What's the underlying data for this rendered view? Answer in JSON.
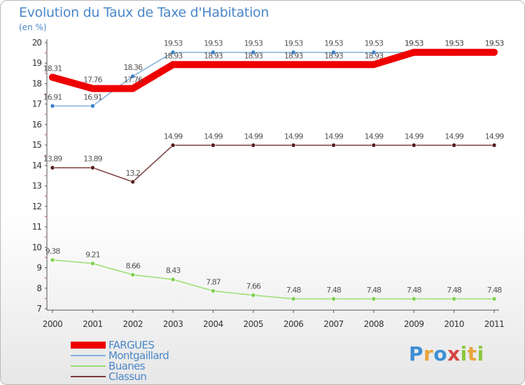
{
  "title": "Evolution du Taux de Taxe d'Habitation",
  "unit_label": "(en %)",
  "logo": {
    "text": "Proxiti",
    "letters": [
      {
        "ch": "P",
        "color": "#3d8fd6"
      },
      {
        "ch": "r",
        "color": "#e8a33a"
      },
      {
        "ch": "o",
        "color": "#3d8fd6"
      },
      {
        "ch": "x",
        "color": "#d64545"
      },
      {
        "ch": "i",
        "color": "#8cc63e"
      },
      {
        "ch": "t",
        "color": "#e8a33a"
      },
      {
        "ch": "i",
        "color": "#8cc63e"
      }
    ]
  },
  "chart_data": {
    "type": "line",
    "title": "Evolution du Taux de Taxe d'Habitation",
    "ylabel": "(en %)",
    "xlabel": "",
    "x": [
      "2000",
      "2001",
      "2002",
      "2003",
      "2004",
      "2005",
      "2006",
      "2007",
      "2008",
      "2009",
      "2010",
      "2011"
    ],
    "ylim": [
      7,
      20
    ],
    "yticks": [
      "7",
      "8",
      "9",
      "10",
      "11",
      "12",
      "13",
      "14",
      "15",
      "16",
      "17",
      "18",
      "19",
      "20"
    ],
    "grid": false,
    "legend_position": "bottom-left",
    "series": [
      {
        "name": "FARGUES",
        "color": "#ee0000",
        "marker_color": "#ee0000",
        "bold": true,
        "values": [
          18.31,
          17.76,
          17.76,
          18.93,
          18.93,
          18.93,
          18.93,
          18.93,
          18.93,
          19.53,
          19.53,
          19.53
        ],
        "labels": [
          "18.31",
          "17.76",
          "17.76",
          "18.93",
          "18.93",
          "18.93",
          "18.93",
          "18.93",
          "18.93",
          "19.53",
          "19.53",
          "19.53"
        ]
      },
      {
        "name": "Montgaillard",
        "color": "#7fb0db",
        "marker_color": "#3a80c8",
        "bold": false,
        "values": [
          16.91,
          16.91,
          18.36,
          19.53,
          19.53,
          19.53,
          19.53,
          19.53,
          19.53,
          19.53,
          19.53,
          19.53
        ],
        "labels": [
          "16.91",
          "16.91",
          "18.36",
          "19.53",
          "19.53",
          "19.53",
          "19.53",
          "19.53",
          "19.53",
          "19.53",
          "19.53",
          "19.53"
        ]
      },
      {
        "name": "Buanes",
        "color": "#99e070",
        "marker_color": "#80d050",
        "bold": false,
        "values": [
          9.38,
          9.21,
          8.66,
          8.43,
          7.87,
          7.66,
          7.48,
          7.48,
          7.48,
          7.48,
          7.48,
          7.48
        ],
        "labels": [
          "9.38",
          "9.21",
          "8.66",
          "8.43",
          "7.87",
          "7.66",
          "7.48",
          "7.48",
          "7.48",
          "7.48",
          "7.48",
          "7.48"
        ]
      },
      {
        "name": "Classun",
        "color": "#7a3a3a",
        "marker_color": "#5a2020",
        "bold": false,
        "values": [
          13.89,
          13.89,
          13.2,
          14.99,
          14.99,
          14.99,
          14.99,
          14.99,
          14.99,
          14.99,
          14.99,
          14.99
        ],
        "labels": [
          "13.89",
          "13.89",
          "13.2",
          "14.99",
          "14.99",
          "14.99",
          "14.99",
          "14.99",
          "14.99",
          "14.99",
          "14.99",
          "14.99"
        ]
      }
    ]
  }
}
